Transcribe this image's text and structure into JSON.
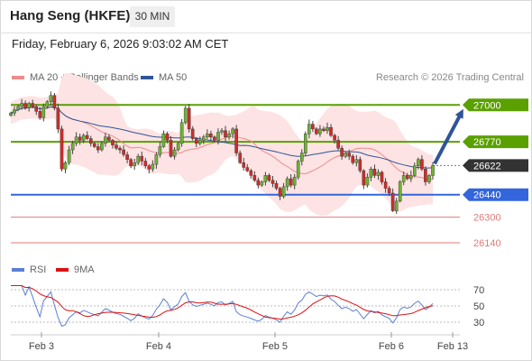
{
  "header": {
    "title": "Hang Seng (HKFE)",
    "timeframe": "30 MIN",
    "datetime": "Friday, February 6, 2026 9:03:02 AM CET",
    "credit": "Research © 2026 Trading Central"
  },
  "legend_main": [
    {
      "label": "MA 20 + Bollinger Bands",
      "color": "#f08a8a"
    },
    {
      "label": "MA 50",
      "color": "#2f5597"
    }
  ],
  "legend_rsi": [
    {
      "label": "RSI",
      "color": "#5b7fd4"
    },
    {
      "label": "9MA",
      "color": "#dd1111"
    }
  ],
  "chart_data": {
    "type": "candlestick",
    "instrument": "Hang Seng (HKFE)",
    "interval": "30 MIN",
    "y_axis_range": [
      26050,
      27120
    ],
    "x_categories": [
      "Feb 3",
      "Feb 4",
      "Feb 5",
      "Feb 6",
      "Feb 13"
    ],
    "current_price": {
      "value": 26622,
      "label": "26622",
      "color": "#333333"
    },
    "levels": [
      {
        "value": 27000,
        "label": "27000",
        "kind": "resistance",
        "color": "#5aa000"
      },
      {
        "value": 26770,
        "label": "26770",
        "kind": "resistance",
        "color": "#5aa000"
      },
      {
        "value": 26440,
        "label": "26440",
        "kind": "pivot",
        "color": "#3366dd"
      },
      {
        "value": 26300,
        "label": "26300",
        "kind": "support",
        "color": "#e07b7b"
      },
      {
        "value": 26140,
        "label": "26140",
        "kind": "support",
        "color": "#e07b7b"
      }
    ],
    "forecast_arrow": {
      "from": 26622,
      "to": 27000,
      "direction": "up",
      "color": "#2f5597"
    },
    "series_close": [
      26950,
      26970,
      26990,
      27010,
      26980,
      27010,
      26990,
      26960,
      26920,
      26990,
      27020,
      27060,
      26980,
      26850,
      26600,
      26640,
      26720,
      26760,
      26800,
      26780,
      26810,
      26790,
      26760,
      26740,
      26720,
      26760,
      26800,
      26780,
      26750,
      26730,
      26720,
      26690,
      26660,
      26620,
      26640,
      26680,
      26650,
      26620,
      26600,
      26630,
      26690,
      26740,
      26820,
      26780,
      26680,
      26720,
      26760,
      26890,
      26980,
      26850,
      26790,
      26760,
      26780,
      26800,
      26820,
      26800,
      26780,
      26830,
      26840,
      26800,
      26820,
      26850,
      26700,
      26640,
      26610,
      26590,
      26560,
      26530,
      26500,
      26520,
      26560,
      26530,
      26510,
      26480,
      26430,
      26490,
      26540,
      26500,
      26550,
      26650,
      26700,
      26820,
      26880,
      26850,
      26820,
      26850,
      26840,
      26860,
      26810,
      26780,
      26730,
      26680,
      26700,
      26680,
      26640,
      26660,
      26590,
      26500,
      26550,
      26600,
      26560,
      26580,
      26520,
      26480,
      26450,
      26340,
      26400,
      26520,
      26560,
      26540,
      26560,
      26620,
      26660,
      26600,
      26520,
      26560,
      26622
    ],
    "indicators": {
      "bollinger": "MA 20 + Bollinger Bands",
      "ma": "MA 50",
      "rsi": {
        "name": "RSI",
        "levels": [
          70,
          50,
          30
        ],
        "signal": "9MA"
      }
    }
  }
}
